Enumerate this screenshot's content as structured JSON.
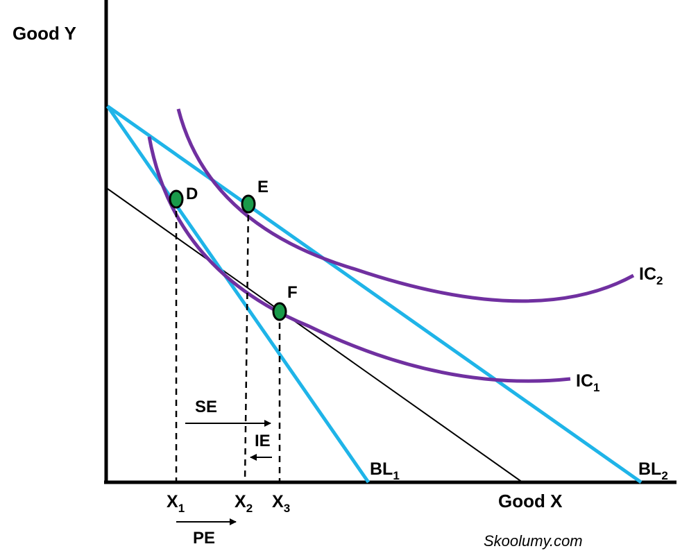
{
  "axes": {
    "y_label": "Good Y",
    "x_label": "Good X"
  },
  "points": {
    "d": "D",
    "e": "E",
    "f": "F"
  },
  "curves": {
    "ic1": {
      "main": "IC",
      "sub": "1"
    },
    "ic2": {
      "main": "IC",
      "sub": "2"
    },
    "bl1": {
      "main": "BL",
      "sub": "1"
    },
    "bl2": {
      "main": "BL",
      "sub": "2"
    }
  },
  "x_ticks": {
    "x1": {
      "main": "X",
      "sub": "1"
    },
    "x2": {
      "main": "X",
      "sub": "2"
    },
    "x3": {
      "main": "X",
      "sub": "3"
    }
  },
  "effects": {
    "se": "SE",
    "ie": "IE",
    "pe": "PE"
  },
  "watermark": "Skoolumy.com",
  "colors": {
    "budget_line": "#1fb4e8",
    "indifference_curve": "#7030a0",
    "point_fill": "#1a9a4a",
    "axis": "#000000"
  }
}
